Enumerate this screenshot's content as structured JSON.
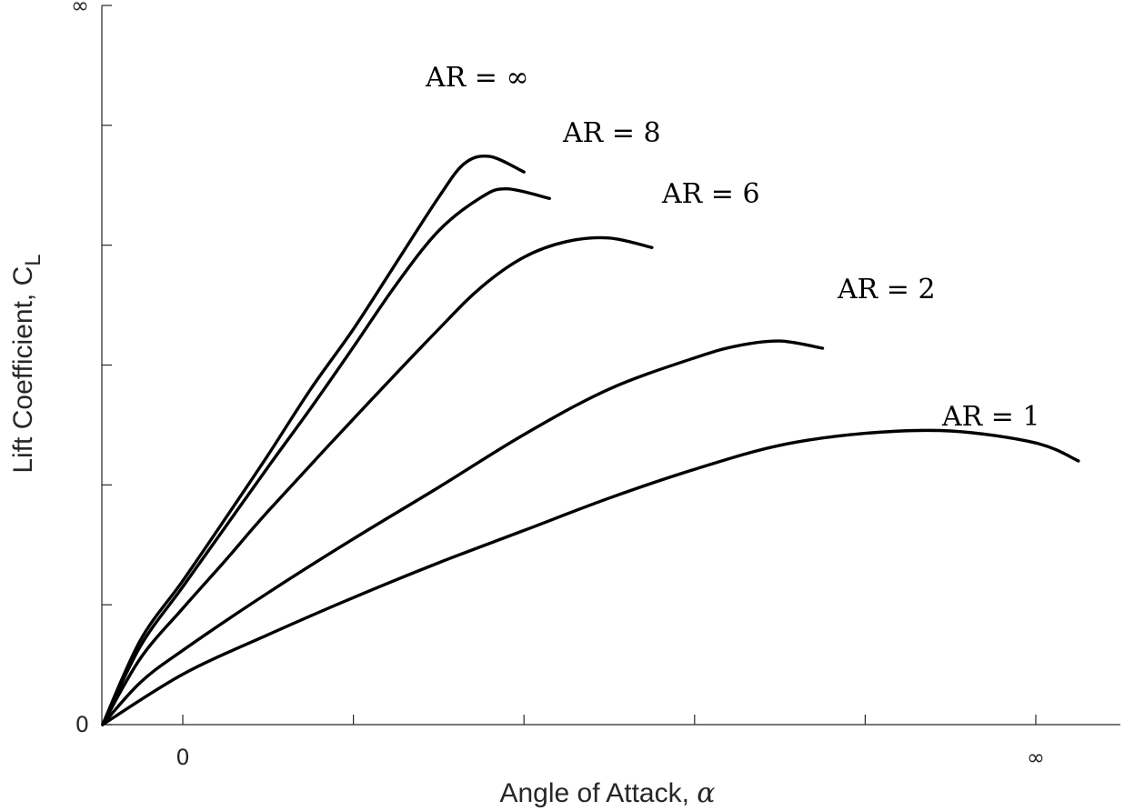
{
  "chart_data": {
    "type": "line",
    "xlabel": "Angle of Attack, ",
    "xlabel_symbol": "α",
    "ylabel": "Lift Coefficient, C",
    "ylabel_subscript": "L",
    "x_tick_labels": [
      {
        "value": 0,
        "label": "0"
      },
      {
        "value": 10,
        "label": "∞"
      }
    ],
    "y_tick_labels": [
      {
        "value": 0,
        "label": "0"
      },
      {
        "value": 6,
        "label": "∞"
      }
    ],
    "x_minor_ticks": [
      0,
      2,
      4,
      6,
      8,
      10
    ],
    "y_minor_ticks": [
      0,
      1,
      2,
      3,
      4,
      5,
      6
    ],
    "xlim": [
      -0.94,
      11.1
    ],
    "ylim": [
      0,
      6
    ],
    "grid": false,
    "legend": "none",
    "series": [
      {
        "name": "AR = ∞",
        "points": [
          [
            -0.94,
            0
          ],
          [
            -0.5,
            0.7
          ],
          [
            0,
            1.2
          ],
          [
            0.5,
            1.72
          ],
          [
            1,
            2.25
          ],
          [
            1.5,
            2.8
          ],
          [
            2,
            3.3
          ],
          [
            2.5,
            3.85
          ],
          [
            3,
            4.4
          ],
          [
            3.3,
            4.68
          ],
          [
            3.6,
            4.74
          ],
          [
            4,
            4.61
          ]
        ]
      },
      {
        "name": "AR = 8",
        "points": [
          [
            -0.94,
            0
          ],
          [
            -0.5,
            0.65
          ],
          [
            0,
            1.15
          ],
          [
            0.5,
            1.65
          ],
          [
            1,
            2.15
          ],
          [
            1.5,
            2.64
          ],
          [
            2,
            3.15
          ],
          [
            2.5,
            3.67
          ],
          [
            3,
            4.12
          ],
          [
            3.5,
            4.4
          ],
          [
            3.8,
            4.47
          ],
          [
            4.3,
            4.39
          ]
        ]
      },
      {
        "name": "AR = 6",
        "points": [
          [
            -0.94,
            0
          ],
          [
            -0.5,
            0.55
          ],
          [
            0,
            0.97
          ],
          [
            0.5,
            1.37
          ],
          [
            1,
            1.78
          ],
          [
            2,
            2.55
          ],
          [
            3,
            3.3
          ],
          [
            3.5,
            3.65
          ],
          [
            4,
            3.9
          ],
          [
            4.5,
            4.03
          ],
          [
            5,
            4.06
          ],
          [
            5.5,
            3.98
          ]
        ]
      },
      {
        "name": "AR = 2",
        "points": [
          [
            -0.94,
            0
          ],
          [
            -0.5,
            0.35
          ],
          [
            0,
            0.62
          ],
          [
            1,
            1.1
          ],
          [
            2,
            1.55
          ],
          [
            3,
            1.98
          ],
          [
            4,
            2.42
          ],
          [
            5,
            2.8
          ],
          [
            6,
            3.06
          ],
          [
            6.5,
            3.16
          ],
          [
            7,
            3.2
          ],
          [
            7.5,
            3.14
          ]
        ]
      },
      {
        "name": "AR = 1",
        "points": [
          [
            -0.94,
            0
          ],
          [
            0,
            0.42
          ],
          [
            1,
            0.75
          ],
          [
            2,
            1.06
          ],
          [
            3,
            1.35
          ],
          [
            4,
            1.62
          ],
          [
            5,
            1.89
          ],
          [
            6,
            2.13
          ],
          [
            7,
            2.33
          ],
          [
            8,
            2.43
          ],
          [
            9,
            2.45
          ],
          [
            10,
            2.35
          ],
          [
            10.5,
            2.2
          ]
        ]
      }
    ]
  }
}
